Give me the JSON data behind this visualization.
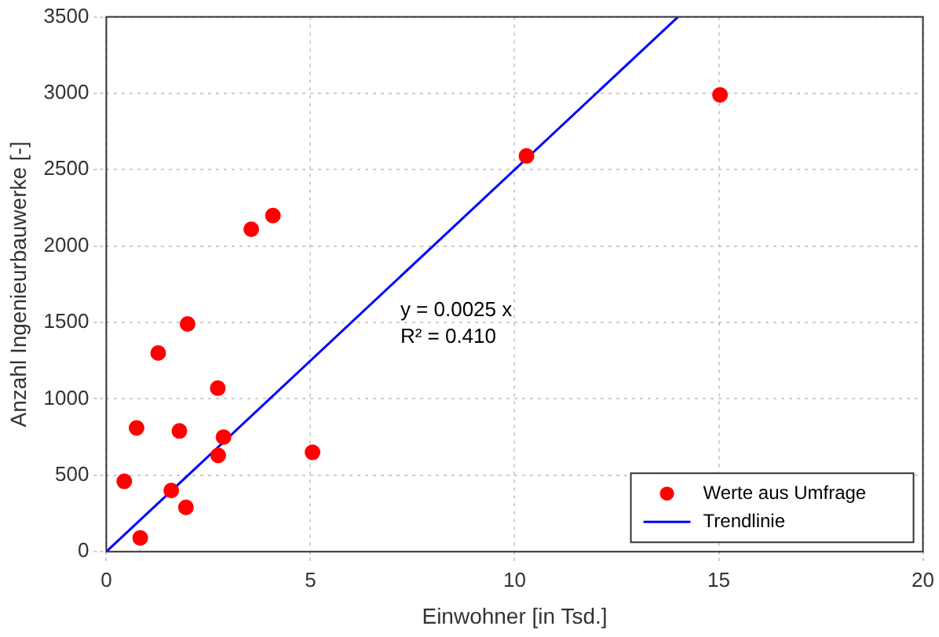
{
  "chart_data": {
    "type": "scatter",
    "xlabel": "Einwohner [in Tsd.]",
    "ylabel": "Anzahl Ingenieurbauwerke [-]",
    "xlim": [
      0,
      20
    ],
    "xticks": [
      0,
      5,
      10,
      15,
      20
    ],
    "ylim": [
      0,
      3500
    ],
    "yticks": [
      0,
      500,
      1000,
      1500,
      2000,
      2500,
      3000,
      3500
    ],
    "grid": true,
    "legend": "bottom right",
    "annotations": [
      "y = 0.0025 x",
      "R² = 0.410"
    ],
    "series": [
      {
        "name": "Werte aus Umfrage",
        "color": "#ff0000",
        "marker": "circle",
        "x": [
          0.44,
          0.74,
          0.83,
          1.27,
          1.59,
          1.79,
          1.95,
          1.99,
          2.73,
          2.74,
          2.87,
          3.55,
          4.08,
          5.05,
          10.29,
          15.03
        ],
        "values": [
          460,
          810,
          90,
          1300,
          400,
          790,
          290,
          1490,
          1070,
          630,
          750,
          2110,
          2200,
          650,
          2590,
          2990
        ]
      },
      {
        "name": "Trendlinie",
        "color": "#0000ff",
        "type": "line",
        "marker": "none",
        "x": [
          0,
          14
        ],
        "values": [
          0,
          3500
        ]
      }
    ]
  }
}
